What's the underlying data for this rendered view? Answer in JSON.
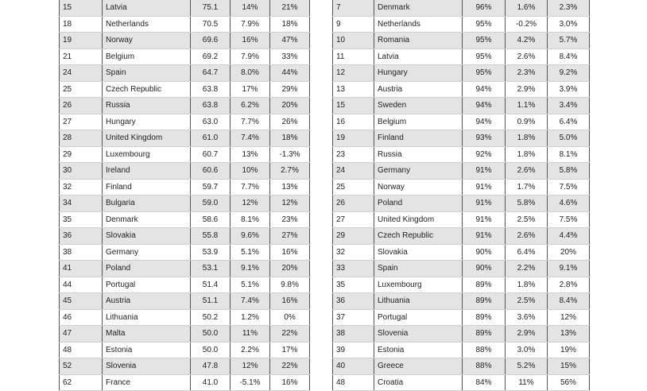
{
  "left_table": {
    "rows": [
      {
        "rank": "15",
        "country": "Latvia",
        "score": "75.1",
        "c1": "14%",
        "c2": "21%"
      },
      {
        "rank": "18",
        "country": "Netherlands",
        "score": "70.5",
        "c1": "7.9%",
        "c2": "18%"
      },
      {
        "rank": "19",
        "country": "Norway",
        "score": "69.6",
        "c1": "16%",
        "c2": "47%"
      },
      {
        "rank": "21",
        "country": "Belgium",
        "score": "69.2",
        "c1": "7.9%",
        "c2": "33%"
      },
      {
        "rank": "24",
        "country": "Spain",
        "score": "64.7",
        "c1": "8.0%",
        "c2": "44%"
      },
      {
        "rank": "25",
        "country": "Czech Republic",
        "score": "63.8",
        "c1": "17%",
        "c2": "29%"
      },
      {
        "rank": "26",
        "country": "Russia",
        "score": "63.8",
        "c1": "6.2%",
        "c2": "20%"
      },
      {
        "rank": "27",
        "country": "Hungary",
        "score": "63.0",
        "c1": "7.7%",
        "c2": "26%"
      },
      {
        "rank": "28",
        "country": "United Kingdom",
        "score": "61.0",
        "c1": "7.4%",
        "c2": "18%"
      },
      {
        "rank": "29",
        "country": "Luxembourg",
        "score": "60.7",
        "c1": "13%",
        "c2": "-1.3%"
      },
      {
        "rank": "30",
        "country": "Ireland",
        "score": "60.6",
        "c1": "10%",
        "c2": "2.7%"
      },
      {
        "rank": "32",
        "country": "Finland",
        "score": "59.7",
        "c1": "7.7%",
        "c2": "13%"
      },
      {
        "rank": "34",
        "country": "Bulgaria",
        "score": "59.0",
        "c1": "12%",
        "c2": "12%"
      },
      {
        "rank": "35",
        "country": "Denmark",
        "score": "58.6",
        "c1": "8.1%",
        "c2": "23%"
      },
      {
        "rank": "36",
        "country": "Slovakia",
        "score": "55.8",
        "c1": "9.6%",
        "c2": "27%"
      },
      {
        "rank": "38",
        "country": "Germany",
        "score": "53.9",
        "c1": "5.1%",
        "c2": "16%"
      },
      {
        "rank": "41",
        "country": "Poland",
        "score": "53.1",
        "c1": "9.1%",
        "c2": "20%"
      },
      {
        "rank": "44",
        "country": "Portugal",
        "score": "51.4",
        "c1": "5.1%",
        "c2": "9.8%"
      },
      {
        "rank": "45",
        "country": "Austria",
        "score": "51.1",
        "c1": "7.4%",
        "c2": "16%"
      },
      {
        "rank": "46",
        "country": "Lithuania",
        "score": "50.2",
        "c1": "1.2%",
        "c2": "0%"
      },
      {
        "rank": "47",
        "country": "Malta",
        "score": "50.0",
        "c1": "11%",
        "c2": "22%"
      },
      {
        "rank": "48",
        "country": "Estonia",
        "score": "50.0",
        "c1": "2.2%",
        "c2": "17%"
      },
      {
        "rank": "52",
        "country": "Slovenia",
        "score": "47.8",
        "c1": "12%",
        "c2": "22%"
      },
      {
        "rank": "62",
        "country": "France",
        "score": "41.0",
        "c1": "-5.1%",
        "c2": "16%"
      }
    ]
  },
  "right_table": {
    "rows": [
      {
        "rank": "7",
        "country": "Denmark",
        "score": "96%",
        "c1": "1.6%",
        "c2": "2.3%"
      },
      {
        "rank": "9",
        "country": "Netherlands",
        "score": "95%",
        "c1": "-0.2%",
        "c2": "3.0%"
      },
      {
        "rank": "10",
        "country": "Romania",
        "score": "95%",
        "c1": "4.2%",
        "c2": "5.7%"
      },
      {
        "rank": "11",
        "country": "Latvia",
        "score": "95%",
        "c1": "2.6%",
        "c2": "8.4%"
      },
      {
        "rank": "12",
        "country": "Hungary",
        "score": "95%",
        "c1": "2.3%",
        "c2": "9.2%"
      },
      {
        "rank": "13",
        "country": "Austria",
        "score": "94%",
        "c1": "2.9%",
        "c2": "3.9%"
      },
      {
        "rank": "15",
        "country": "Sweden",
        "score": "94%",
        "c1": "1.1%",
        "c2": "3.4%"
      },
      {
        "rank": "16",
        "country": "Belgium",
        "score": "94%",
        "c1": "0.9%",
        "c2": "6.4%"
      },
      {
        "rank": "19",
        "country": "Finland",
        "score": "93%",
        "c1": "1.8%",
        "c2": "5.0%"
      },
      {
        "rank": "23",
        "country": "Russia",
        "score": "92%",
        "c1": "1.8%",
        "c2": "8.1%"
      },
      {
        "rank": "24",
        "country": "Germany",
        "score": "91%",
        "c1": "2.6%",
        "c2": "5.8%"
      },
      {
        "rank": "25",
        "country": "Norway",
        "score": "91%",
        "c1": "1.7%",
        "c2": "7.5%"
      },
      {
        "rank": "26",
        "country": "Poland",
        "score": "91%",
        "c1": "5.8%",
        "c2": "4.6%"
      },
      {
        "rank": "27",
        "country": "United Kingdom",
        "score": "91%",
        "c1": "2.5%",
        "c2": "7.5%"
      },
      {
        "rank": "29",
        "country": "Czech Republic",
        "score": "91%",
        "c1": "2.6%",
        "c2": "4.4%"
      },
      {
        "rank": "32",
        "country": "Slovakia",
        "score": "90%",
        "c1": "6.4%",
        "c2": "20%"
      },
      {
        "rank": "33",
        "country": "Spain",
        "score": "90%",
        "c1": "2.2%",
        "c2": "9.1%"
      },
      {
        "rank": "35",
        "country": "Luxembourg",
        "score": "89%",
        "c1": "1.8%",
        "c2": "2.8%"
      },
      {
        "rank": "36",
        "country": "Lithuania",
        "score": "89%",
        "c1": "2.5%",
        "c2": "8.4%"
      },
      {
        "rank": "37",
        "country": "Portugal",
        "score": "89%",
        "c1": "3.6%",
        "c2": "12%"
      },
      {
        "rank": "38",
        "country": "Slovenia",
        "score": "89%",
        "c1": "2.9%",
        "c2": "13%"
      },
      {
        "rank": "39",
        "country": "Estonia",
        "score": "88%",
        "c1": "3.0%",
        "c2": "19%"
      },
      {
        "rank": "40",
        "country": "Greece",
        "score": "88%",
        "c1": "5.2%",
        "c2": "15%"
      },
      {
        "rank": "48",
        "country": "Croatia",
        "score": "84%",
        "c1": "11%",
        "c2": "56%"
      }
    ]
  }
}
